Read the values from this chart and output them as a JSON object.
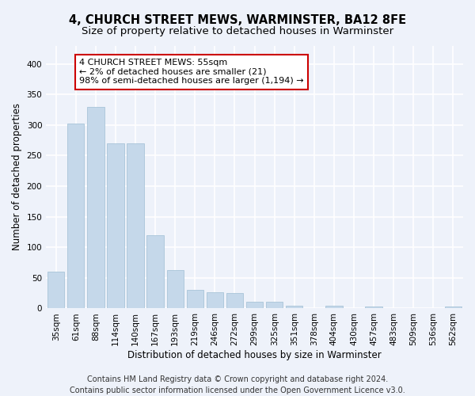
{
  "title": "4, CHURCH STREET MEWS, WARMINSTER, BA12 8FE",
  "subtitle": "Size of property relative to detached houses in Warminster",
  "xlabel": "Distribution of detached houses by size in Warminster",
  "ylabel": "Number of detached properties",
  "categories": [
    "35sqm",
    "61sqm",
    "88sqm",
    "114sqm",
    "140sqm",
    "167sqm",
    "193sqm",
    "219sqm",
    "246sqm",
    "272sqm",
    "299sqm",
    "325sqm",
    "351sqm",
    "378sqm",
    "404sqm",
    "430sqm",
    "457sqm",
    "483sqm",
    "509sqm",
    "536sqm",
    "562sqm"
  ],
  "values": [
    60,
    303,
    330,
    270,
    270,
    120,
    63,
    30,
    27,
    25,
    11,
    11,
    4,
    0,
    4,
    0,
    3,
    0,
    0,
    0,
    3
  ],
  "bar_color": "#c5d8ea",
  "bar_edge_color": "#a8c4d8",
  "annotation_text": "4 CHURCH STREET MEWS: 55sqm\n← 2% of detached houses are smaller (21)\n98% of semi-detached houses are larger (1,194) →",
  "annotation_box_color": "#ffffff",
  "annotation_box_edge_color": "#cc0000",
  "ylim": [
    0,
    430
  ],
  "yticks": [
    0,
    50,
    100,
    150,
    200,
    250,
    300,
    350,
    400
  ],
  "footer_line1": "Contains HM Land Registry data © Crown copyright and database right 2024.",
  "footer_line2": "Contains public sector information licensed under the Open Government Licence v3.0.",
  "bg_color": "#eef2fa",
  "plot_bg_color": "#eef2fa",
  "grid_color": "#ffffff",
  "title_fontsize": 10.5,
  "subtitle_fontsize": 9.5,
  "axis_label_fontsize": 8.5,
  "tick_fontsize": 7.5,
  "annotation_fontsize": 8,
  "footer_fontsize": 7
}
